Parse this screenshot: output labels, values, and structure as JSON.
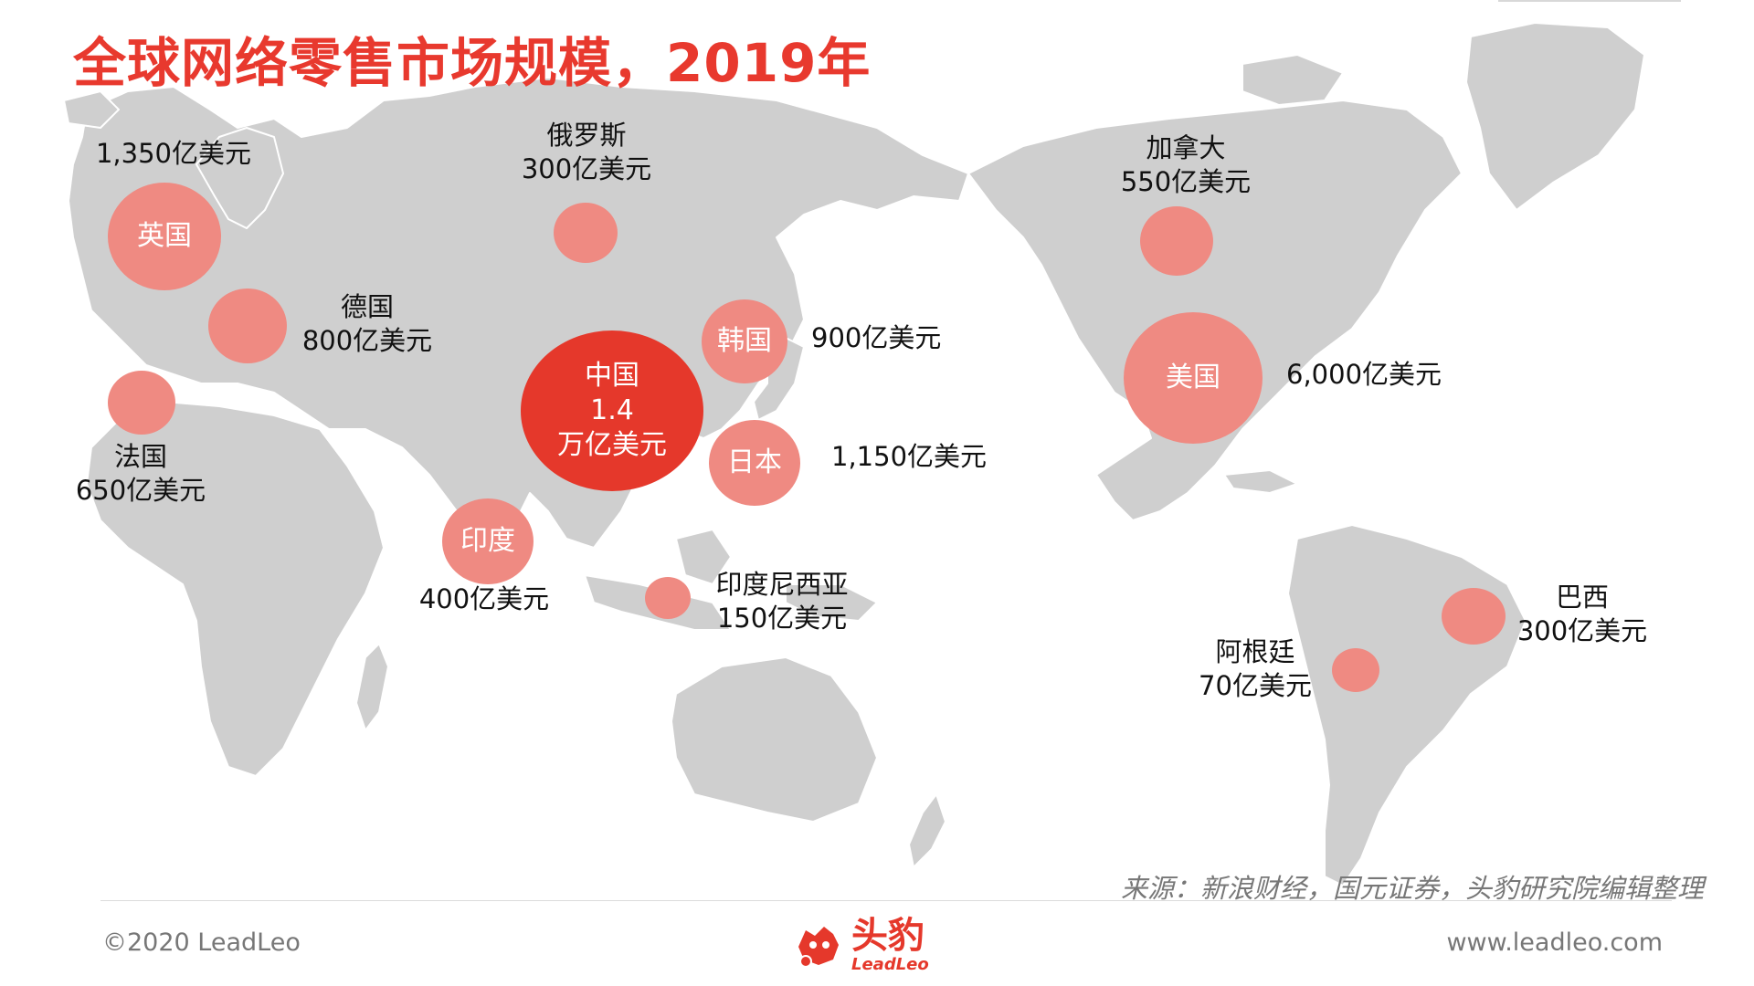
{
  "title": "全球网络零售市场规模，2019年",
  "source": "来源：新浪财经，国元证券，头豹研究院编辑整理",
  "footer": {
    "copyright": "©2020 LeadLeo",
    "website": "www.leadleo.com",
    "logo_cn": "头豹",
    "logo_en": "LeadLeo"
  },
  "watermark": "头豹",
  "colors": {
    "title": "#e8392e",
    "bubble": "#ef8a82",
    "china_bubble": "#e5382b",
    "land": "#cfcfcf",
    "border": "#ffffff"
  },
  "icons": {
    "logo": "leopard-head-icon",
    "watermark": "leopard-watermark-icon"
  },
  "countries": {
    "uk": {
      "name": "英国",
      "value": "1,350亿美元"
    },
    "russia": {
      "name": "俄罗斯",
      "value": "300亿美元"
    },
    "germany": {
      "name": "德国",
      "value": "800亿美元"
    },
    "france": {
      "name": "法国",
      "value": "650亿美元"
    },
    "china": {
      "name": "中国",
      "value_line1": "1.4",
      "value_line2": "万亿美元"
    },
    "korea": {
      "name": "韩国",
      "value": "900亿美元"
    },
    "japan": {
      "name": "日本",
      "value": "1,150亿美元"
    },
    "india": {
      "name": "印度",
      "value": "400亿美元"
    },
    "indonesia": {
      "name": "印度尼西亚",
      "value": "150亿美元"
    },
    "canada": {
      "name": "加拿大",
      "value": "550亿美元"
    },
    "usa": {
      "name": "美国",
      "value": "6,000亿美元"
    },
    "brazil": {
      "name": "巴西",
      "value": "300亿美元"
    },
    "argentina": {
      "name": "阿根廷",
      "value": "70亿美元"
    }
  }
}
